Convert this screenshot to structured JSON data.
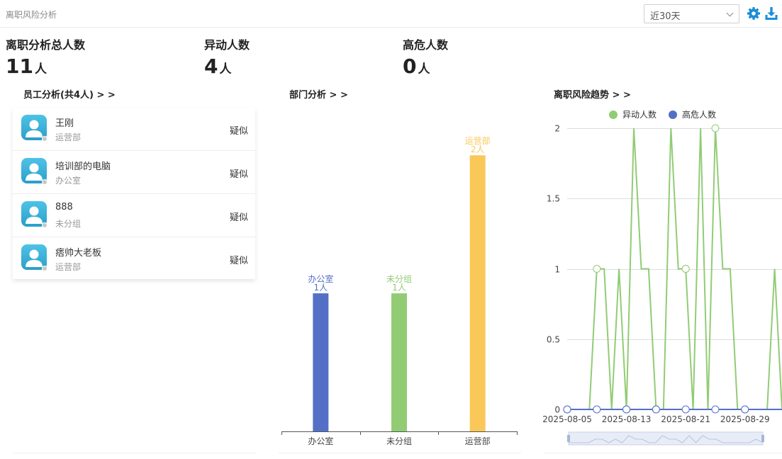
{
  "header": {
    "title": "离职风险分析",
    "range": {
      "selected": "近30天"
    },
    "settings_icon": "gear-icon",
    "download_icon": "download-icon",
    "accent": "#1a8fd8"
  },
  "stats": [
    {
      "label": "离职分析总人数",
      "value": "11",
      "unit": "人"
    },
    {
      "label": "异动人数",
      "value": "4",
      "unit": "人"
    },
    {
      "label": "高危人数",
      "value": "0",
      "unit": "人"
    }
  ],
  "employees": {
    "title": "员工分析(共4人) > >",
    "items": [
      {
        "name": "王刚",
        "dept": "运营部",
        "level": "疑似"
      },
      {
        "name": "培训部的电脑",
        "dept": "办公室",
        "level": "疑似"
      },
      {
        "name": "888",
        "dept": "未分组",
        "level": "疑似"
      },
      {
        "name": "痞帅大老板",
        "dept": "运营部",
        "level": "疑似"
      }
    ]
  },
  "dept_section": {
    "title": "部门分析 > >"
  },
  "trend_section": {
    "title": "离职风险趋势 > >"
  },
  "chart_data": [
    {
      "type": "bar",
      "categories": [
        "办公室",
        "未分组",
        "运营部"
      ],
      "values": [
        1,
        1,
        2
      ],
      "colors": [
        "#5470c6",
        "#91cc75",
        "#fac858"
      ],
      "value_unit": "人",
      "ylim": [
        0,
        2.15
      ],
      "grid": false
    },
    {
      "type": "line",
      "ylim": [
        0,
        2
      ],
      "y_ticks": [
        "0",
        "0.5",
        "1",
        "1.5",
        "2"
      ],
      "x_ticks": [
        "2025-08-05",
        "2025-08-13",
        "2025-08-21",
        "2025-08-29"
      ],
      "x": [
        "2025-08-05",
        "2025-08-06",
        "2025-08-07",
        "2025-08-08",
        "2025-08-09",
        "2025-08-10",
        "2025-08-11",
        "2025-08-12",
        "2025-08-13",
        "2025-08-14",
        "2025-08-15",
        "2025-08-16",
        "2025-08-17",
        "2025-08-18",
        "2025-08-19",
        "2025-08-20",
        "2025-08-21",
        "2025-08-22",
        "2025-08-23",
        "2025-08-24",
        "2025-08-25",
        "2025-08-26",
        "2025-08-27",
        "2025-08-28",
        "2025-08-29",
        "2025-08-30",
        "2025-08-31",
        "2025-09-01",
        "2025-09-02",
        "2025-09-03"
      ],
      "legend_position": "top",
      "grid": true,
      "series": [
        {
          "name": "异动人数",
          "color": "#91cc75",
          "values": [
            0,
            0,
            0,
            0,
            1,
            1,
            0,
            1,
            0,
            2,
            1,
            1,
            0,
            0,
            2,
            1,
            1,
            0,
            2,
            0,
            2,
            1,
            1,
            0,
            0,
            0,
            0,
            0,
            1,
            0
          ]
        },
        {
          "name": "高危人数",
          "color": "#5470c6",
          "values": [
            0,
            0,
            0,
            0,
            0,
            0,
            0,
            0,
            0,
            0,
            0,
            0,
            0,
            0,
            0,
            0,
            0,
            0,
            0,
            0,
            0,
            0,
            0,
            0,
            0,
            0,
            0,
            0,
            0,
            0
          ]
        }
      ]
    }
  ]
}
